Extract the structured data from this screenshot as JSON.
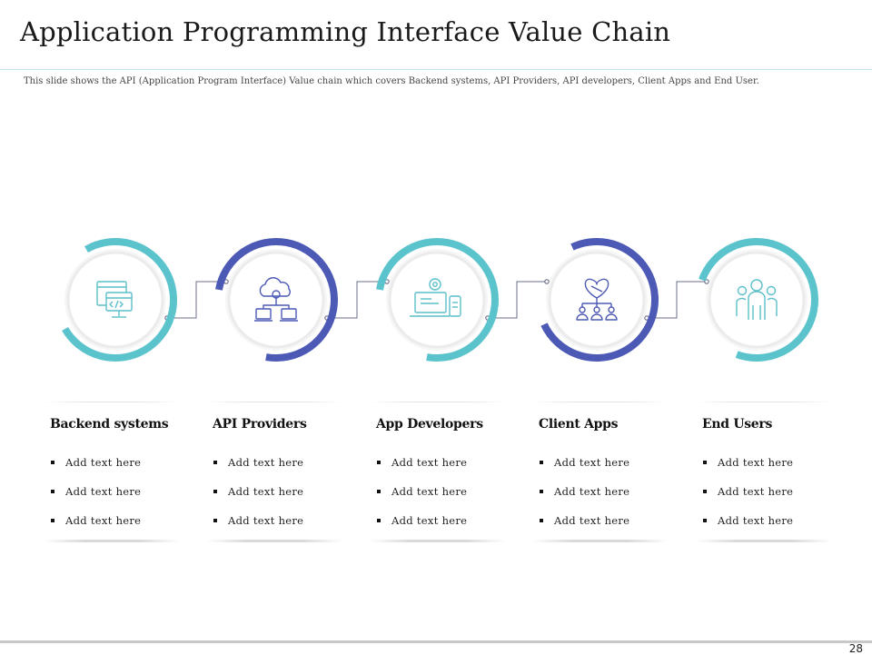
{
  "slide": {
    "title": "Application Programming Interface Value Chain",
    "subtitle": "This slide shows the API (Application Program Interface) Value chain which covers Backend systems, API Providers, API developers, Client Apps and End User.",
    "page_number": "28"
  },
  "colors": {
    "teal": "#5bc3cc",
    "indigo": "#4d5ab5",
    "icon": "#5bbfc9",
    "connector": "#6b6f8a"
  },
  "stages": [
    {
      "title": "Backend systems",
      "icon": "code-monitor-icon",
      "ring_color": "teal",
      "bullets": [
        "Add text here",
        "Add text here",
        "Add text here"
      ]
    },
    {
      "title": "API Providers",
      "icon": "cloud-network-icon",
      "ring_color": "indigo",
      "bullets": [
        "Add text here",
        "Add text here",
        "Add text here"
      ]
    },
    {
      "title": "App Developers",
      "icon": "app-devices-icon",
      "ring_color": "teal",
      "bullets": [
        "Add text here",
        "Add text here",
        "Add text here"
      ]
    },
    {
      "title": "Client Apps",
      "icon": "handshake-heart-icon",
      "ring_color": "indigo",
      "bullets": [
        "Add text here",
        "Add text here",
        "Add text here"
      ]
    },
    {
      "title": "End Users",
      "icon": "user-group-icon",
      "ring_color": "teal",
      "bullets": [
        "Add text here",
        "Add text here",
        "Add text here"
      ]
    }
  ]
}
